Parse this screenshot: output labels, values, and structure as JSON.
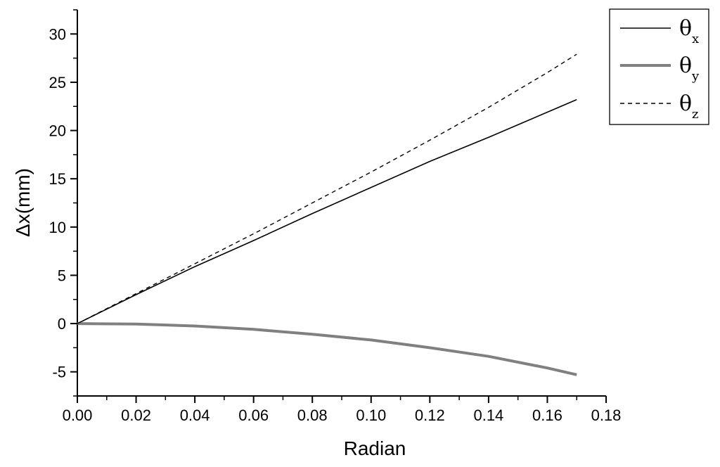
{
  "chart_data": {
    "type": "line",
    "xlabel": "Radian",
    "ylabel": "Δx(mm)",
    "xlim": [
      0.0,
      0.18
    ],
    "ylim": [
      -7.5,
      32.5
    ],
    "xticks": [
      "0.00",
      "0.02",
      "0.04",
      "0.06",
      "0.08",
      "0.10",
      "0.12",
      "0.14",
      "0.16",
      "0.18"
    ],
    "yticks": [
      "-5",
      "0",
      "5",
      "10",
      "15",
      "20",
      "25",
      "30"
    ],
    "legend_position": "top-right",
    "grid": false,
    "series": [
      {
        "name": "θ",
        "subscript": "x",
        "style": "solid-thin",
        "color": "#000000",
        "x": [
          0.0,
          0.02,
          0.04,
          0.06,
          0.08,
          0.1,
          0.12,
          0.14,
          0.16,
          0.17
        ],
        "y": [
          0.0,
          3.0,
          5.9,
          8.6,
          11.4,
          14.1,
          16.8,
          19.3,
          21.9,
          23.2
        ]
      },
      {
        "name": "θ",
        "subscript": "y",
        "style": "solid-thick",
        "color": "#808080",
        "x": [
          0.0,
          0.02,
          0.04,
          0.06,
          0.08,
          0.1,
          0.12,
          0.14,
          0.16,
          0.17
        ],
        "y": [
          0.0,
          -0.05,
          -0.25,
          -0.6,
          -1.1,
          -1.7,
          -2.5,
          -3.4,
          -4.6,
          -5.3
        ]
      },
      {
        "name": "θ",
        "subscript": "z",
        "style": "dashed",
        "color": "#000000",
        "x": [
          0.0,
          0.02,
          0.04,
          0.06,
          0.08,
          0.1,
          0.12,
          0.14,
          0.16,
          0.17
        ],
        "y": [
          0.0,
          3.1,
          6.2,
          9.3,
          12.5,
          15.7,
          19.0,
          22.4,
          26.0,
          27.9
        ]
      }
    ]
  }
}
